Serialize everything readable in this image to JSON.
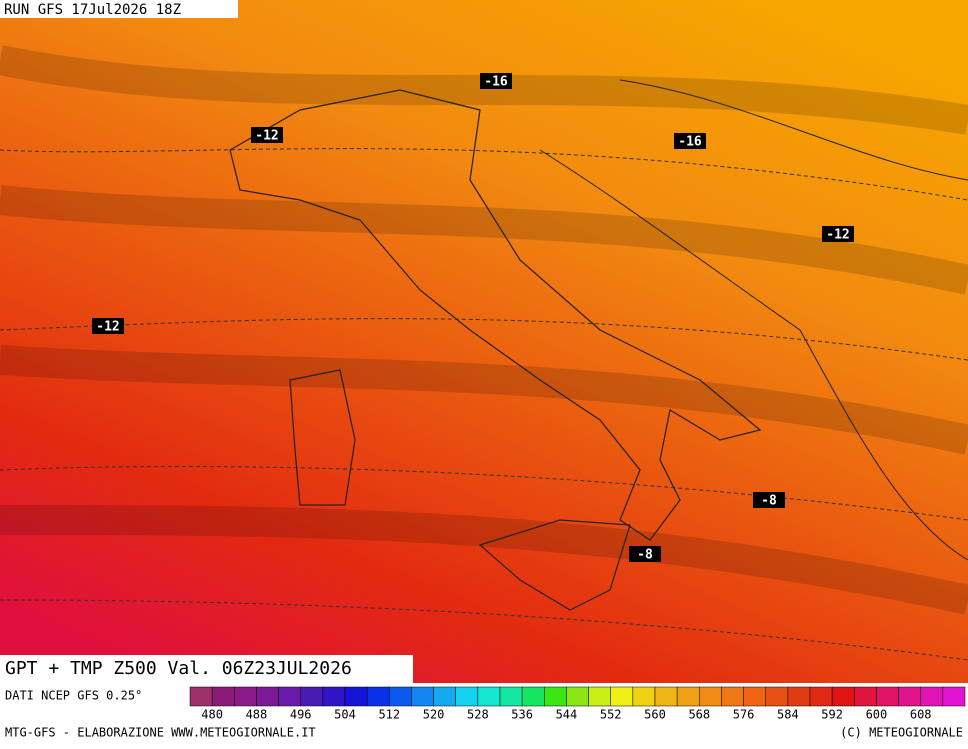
{
  "header": {
    "run": "RUN GFS 17Jul2026 18Z"
  },
  "map": {
    "contour_labels": [
      "-16",
      "-12",
      "-16",
      "-12",
      "-12",
      "-8",
      "-8"
    ]
  },
  "footer": {
    "title": "GPT + TMP Z500 Val. 06Z23JUL2026",
    "source": "DATI NCEP GFS 0.25°",
    "credit_left": "MTG-GFS - ELABORAZIONE WWW.METEOGIORNALE.IT",
    "credit_right": "(C) METEOGIORNALE"
  },
  "colorbar": {
    "labels": [
      "480",
      "488",
      "496",
      "504",
      "512",
      "520",
      "528",
      "536",
      "544",
      "552",
      "560",
      "568",
      "576",
      "584",
      "592",
      "600",
      "608"
    ],
    "colors": [
      "#a0306a",
      "#8c1a78",
      "#8a1a8a",
      "#7a1a96",
      "#6a1aa8",
      "#4a1ab4",
      "#3014c8",
      "#1414d8",
      "#0a30e8",
      "#0a5af0",
      "#1486f0",
      "#14aaf0",
      "#14d2f0",
      "#14e6d2",
      "#14e6a0",
      "#14e664",
      "#3ce614",
      "#8ce614",
      "#c8f014",
      "#f0f014",
      "#f0d214",
      "#f0b414",
      "#f0a014",
      "#f08c14",
      "#f07814",
      "#f06414",
      "#e85014",
      "#e03c14",
      "#e02814",
      "#e01414",
      "#e0143c",
      "#e01464",
      "#e0148c",
      "#e014b4",
      "#e014d2"
    ]
  }
}
